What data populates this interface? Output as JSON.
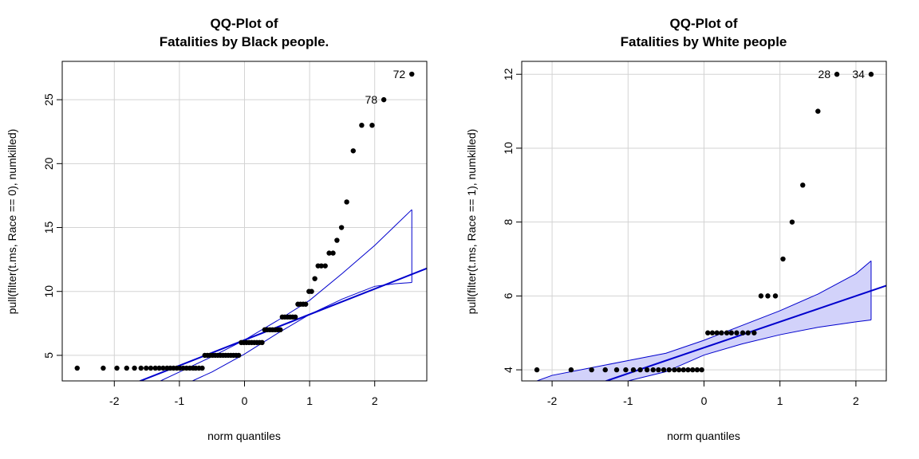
{
  "chart_data": [
    {
      "type": "scatter",
      "title": [
        "QQ-Plot of",
        "Fatalities by Black people."
      ],
      "xlabel": "norm quantiles",
      "ylabel": "pull(filter(t.ms, Race == 0), numkilled)",
      "xlim": [
        -2.8,
        2.8
      ],
      "ylim": [
        3,
        28
      ],
      "xticks": [
        -2,
        -1,
        0,
        1,
        2
      ],
      "yticks": [
        5,
        10,
        15,
        20,
        25
      ],
      "grid": true,
      "band_filled": false,
      "colors": {
        "points": "#000000",
        "line": "#0000cd",
        "band": "#0000cd",
        "grid": "#d3d3d3"
      },
      "points": [
        [
          -2.57,
          4
        ],
        [
          -2.17,
          4
        ],
        [
          -1.96,
          4
        ],
        [
          -1.81,
          4
        ],
        [
          -1.69,
          4
        ],
        [
          -1.59,
          4
        ],
        [
          -1.51,
          4
        ],
        [
          -1.44,
          4
        ],
        [
          -1.37,
          4
        ],
        [
          -1.31,
          4
        ],
        [
          -1.25,
          4
        ],
        [
          -1.19,
          4
        ],
        [
          -1.14,
          4
        ],
        [
          -1.09,
          4
        ],
        [
          -1.04,
          4
        ],
        [
          -0.99,
          4
        ],
        [
          -0.94,
          4
        ],
        [
          -0.89,
          4
        ],
        [
          -0.84,
          4
        ],
        [
          -0.79,
          4
        ],
        [
          -0.75,
          4
        ],
        [
          -0.7,
          4
        ],
        [
          -0.65,
          4
        ],
        [
          -0.61,
          5
        ],
        [
          -0.57,
          5
        ],
        [
          -0.53,
          5
        ],
        [
          -0.49,
          5
        ],
        [
          -0.45,
          5
        ],
        [
          -0.41,
          5
        ],
        [
          -0.37,
          5
        ],
        [
          -0.33,
          5
        ],
        [
          -0.29,
          5
        ],
        [
          -0.25,
          5
        ],
        [
          -0.21,
          5
        ],
        [
          -0.17,
          5
        ],
        [
          -0.13,
          5
        ],
        [
          -0.09,
          5
        ],
        [
          -0.05,
          6
        ],
        [
          -0.01,
          6
        ],
        [
          0.03,
          6
        ],
        [
          0.07,
          6
        ],
        [
          0.11,
          6
        ],
        [
          0.15,
          6
        ],
        [
          0.19,
          6
        ],
        [
          0.23,
          6
        ],
        [
          0.27,
          6
        ],
        [
          0.31,
          7
        ],
        [
          0.35,
          7
        ],
        [
          0.39,
          7
        ],
        [
          0.43,
          7
        ],
        [
          0.47,
          7
        ],
        [
          0.51,
          7
        ],
        [
          0.55,
          7
        ],
        [
          0.58,
          8
        ],
        [
          0.62,
          8
        ],
        [
          0.66,
          8
        ],
        [
          0.7,
          8
        ],
        [
          0.74,
          8
        ],
        [
          0.78,
          8
        ],
        [
          0.82,
          9
        ],
        [
          0.86,
          9
        ],
        [
          0.9,
          9
        ],
        [
          0.94,
          9
        ],
        [
          0.99,
          10
        ],
        [
          1.03,
          10
        ],
        [
          1.08,
          11
        ],
        [
          1.13,
          12
        ],
        [
          1.18,
          12
        ],
        [
          1.24,
          12
        ],
        [
          1.3,
          13
        ],
        [
          1.36,
          13
        ],
        [
          1.42,
          14
        ],
        [
          1.49,
          15
        ],
        [
          1.57,
          17
        ],
        [
          1.67,
          21
        ],
        [
          1.8,
          23
        ],
        [
          1.96,
          23
        ],
        [
          2.14,
          25
        ],
        [
          2.57,
          27
        ]
      ],
      "ref_line": {
        "slope": 2.0,
        "intercept": 6.2
      },
      "band_upper": [
        [
          -1.29,
          3.0
        ],
        [
          -1.0,
          3.7
        ],
        [
          -0.5,
          4.9
        ],
        [
          0,
          6.2
        ],
        [
          0.5,
          7.7
        ],
        [
          1.0,
          9.3
        ],
        [
          1.5,
          11.4
        ],
        [
          2.0,
          13.6
        ],
        [
          2.57,
          16.4
        ]
      ],
      "band_lower": [
        [
          -0.8,
          3.0
        ],
        [
          -0.5,
          3.7
        ],
        [
          0,
          5.1
        ],
        [
          0.5,
          6.7
        ],
        [
          1.0,
          8.2
        ],
        [
          1.5,
          9.4
        ],
        [
          2.0,
          10.4
        ],
        [
          2.3,
          10.6
        ],
        [
          2.57,
          10.7
        ]
      ],
      "labels": [
        {
          "text": "72",
          "x": 2.57,
          "y": 27
        },
        {
          "text": "78",
          "x": 2.14,
          "y": 25
        }
      ]
    },
    {
      "type": "scatter",
      "title": [
        "QQ-Plot of",
        "Fatalities by White people"
      ],
      "xlabel": "norm quantiles",
      "ylabel": "pull(filter(t.ms, Race == 1), numkilled)",
      "xlim": [
        -2.4,
        2.4
      ],
      "ylim": [
        3.7,
        12.35
      ],
      "xticks": [
        -2,
        -1,
        0,
        1,
        2
      ],
      "yticks": [
        4,
        6,
        8,
        10,
        12
      ],
      "grid": true,
      "band_filled": true,
      "colors": {
        "points": "#000000",
        "line": "#0000cd",
        "band": "#0000cd",
        "band_fill": "#d2d2fa",
        "grid": "#d3d3d3"
      },
      "points": [
        [
          -2.2,
          4
        ],
        [
          -1.75,
          4
        ],
        [
          -1.48,
          4
        ],
        [
          -1.3,
          4
        ],
        [
          -1.15,
          4
        ],
        [
          -1.03,
          4
        ],
        [
          -0.93,
          4
        ],
        [
          -0.84,
          4
        ],
        [
          -0.75,
          4
        ],
        [
          -0.67,
          4
        ],
        [
          -0.6,
          4
        ],
        [
          -0.53,
          4
        ],
        [
          -0.46,
          4
        ],
        [
          -0.39,
          4
        ],
        [
          -0.33,
          4
        ],
        [
          -0.27,
          4
        ],
        [
          -0.21,
          4
        ],
        [
          -0.15,
          4
        ],
        [
          -0.09,
          4
        ],
        [
          -0.03,
          4
        ],
        [
          0.05,
          5
        ],
        [
          0.11,
          5
        ],
        [
          0.17,
          5
        ],
        [
          0.23,
          5
        ],
        [
          0.3,
          5
        ],
        [
          0.36,
          5
        ],
        [
          0.43,
          5
        ],
        [
          0.51,
          5
        ],
        [
          0.58,
          5
        ],
        [
          0.66,
          5
        ],
        [
          0.75,
          6
        ],
        [
          0.84,
          6
        ],
        [
          0.94,
          6
        ],
        [
          1.04,
          7
        ],
        [
          1.16,
          8
        ],
        [
          1.3,
          9
        ],
        [
          1.5,
          11
        ],
        [
          1.75,
          12
        ],
        [
          2.2,
          12
        ]
      ],
      "ref_line": {
        "slope": 0.7,
        "intercept": 4.6
      },
      "band_upper": [
        [
          -2.2,
          3.7
        ],
        [
          -2.0,
          3.85
        ],
        [
          -1.5,
          4.05
        ],
        [
          -1.0,
          4.25
        ],
        [
          -0.5,
          4.45
        ],
        [
          0,
          4.8
        ],
        [
          0.5,
          5.2
        ],
        [
          1.0,
          5.6
        ],
        [
          1.5,
          6.05
        ],
        [
          2.0,
          6.6
        ],
        [
          2.2,
          6.95
        ]
      ],
      "band_lower": [
        [
          -1.0,
          3.7
        ],
        [
          -0.5,
          3.95
        ],
        [
          0,
          4.4
        ],
        [
          0.5,
          4.7
        ],
        [
          1.0,
          4.95
        ],
        [
          1.5,
          5.15
        ],
        [
          2.0,
          5.3
        ],
        [
          2.2,
          5.35
        ]
      ],
      "labels": [
        {
          "text": "28",
          "x": 1.75,
          "y": 12
        },
        {
          "text": "34",
          "x": 2.2,
          "y": 12
        }
      ]
    }
  ]
}
